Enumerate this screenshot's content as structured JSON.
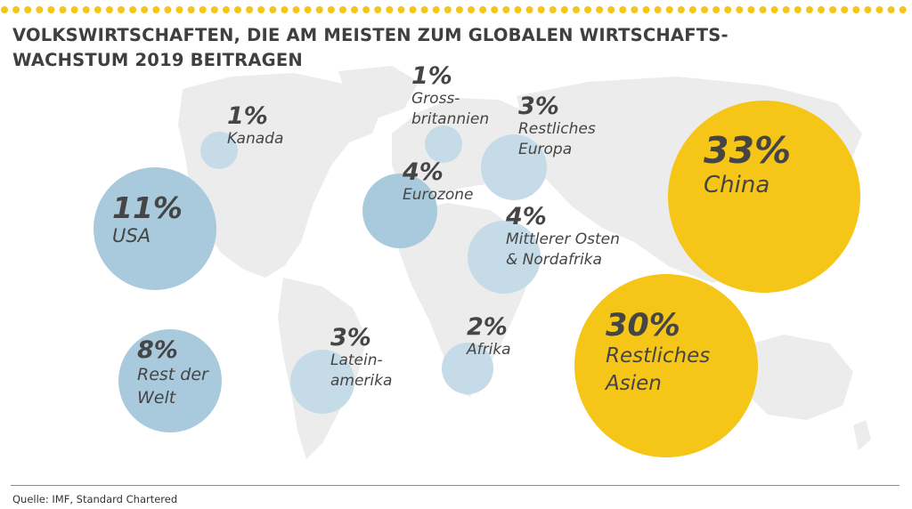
{
  "title_line1": "VOLKSWIRTSCHAFTEN, DIE AM MEISTEN ZUM GLOBALEN WIRTSCHAFTS-",
  "title_line2": "WACHSTUM 2019 BEITRAGEN",
  "source": "Quelle: IMF, Standard Chartered",
  "colors": {
    "accent_yellow": "#f5c518",
    "bubble_blue": "#a9c9dc",
    "bubble_blue_light": "#c5dbe8",
    "map_grey": "#ececec",
    "text_dark": "#454545"
  },
  "chart_data": {
    "type": "bubble",
    "unit": "%",
    "series": [
      {
        "label": "Kanada",
        "value": 1,
        "pct": "1%",
        "lines": [
          "Kanada"
        ]
      },
      {
        "label": "USA",
        "value": 11,
        "pct": "11%",
        "lines": [
          "USA"
        ]
      },
      {
        "label": "Grossbritannien",
        "value": 1,
        "pct": "1%",
        "lines": [
          "Gross-",
          "britannien"
        ]
      },
      {
        "label": "Eurozone",
        "value": 4,
        "pct": "4%",
        "lines": [
          "Eurozone"
        ]
      },
      {
        "label": "Restliches Europa",
        "value": 3,
        "pct": "3%",
        "lines": [
          "Restliches",
          "Europa"
        ]
      },
      {
        "label": "Mittlerer Osten & Nordafrika",
        "value": 4,
        "pct": "4%",
        "lines": [
          "Mittlerer Osten",
          "& Nordafrika"
        ]
      },
      {
        "label": "China",
        "value": 33,
        "pct": "33%",
        "lines": [
          "China"
        ]
      },
      {
        "label": "Restliches Asien",
        "value": 30,
        "pct": "30%",
        "lines": [
          "Restliches",
          "Asien"
        ]
      },
      {
        "label": "Rest der Welt",
        "value": 8,
        "pct": "8%",
        "lines": [
          "Rest der",
          "Welt"
        ]
      },
      {
        "label": "Lateinamerika",
        "value": 3,
        "pct": "3%",
        "lines": [
          "Latein-",
          "amerika"
        ]
      },
      {
        "label": "Afrika",
        "value": 2,
        "pct": "2%",
        "lines": [
          "Afrika"
        ]
      }
    ]
  }
}
